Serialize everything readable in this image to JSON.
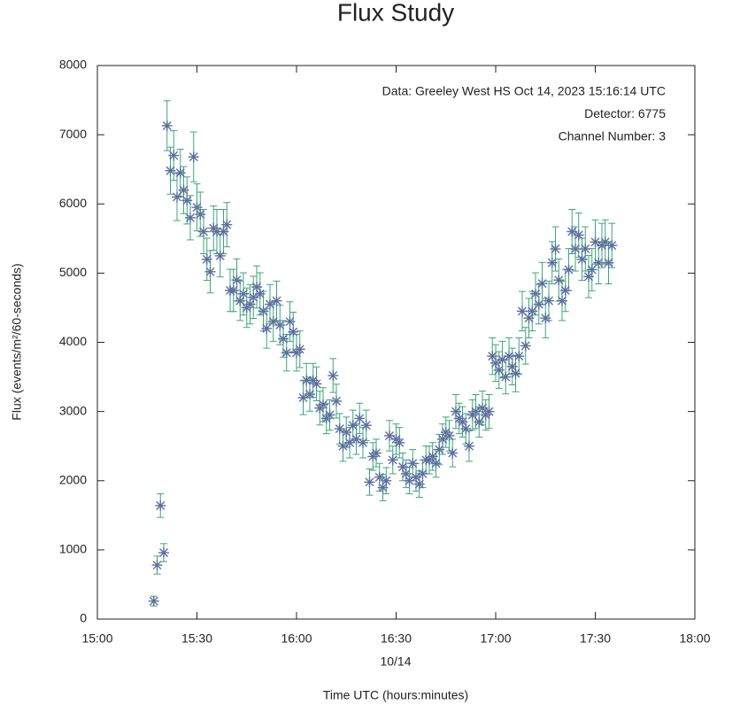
{
  "chart_data": {
    "type": "scatter",
    "title": "Flux Study",
    "x_label": "Time UTC (hours:minutes)",
    "x_date_label": "10/14",
    "y_label": "Flux (events/m²/60-seconds)",
    "annotations": [
      "Data: Greeley West HS Oct 14, 2023 15:16:14 UTC",
      "Detector: 6775",
      "Channel Number: 3"
    ],
    "marker_color": "#5b6f9c",
    "error_color": "#3da67a",
    "xlim": [
      "15:00",
      "18:00"
    ],
    "xticks": [
      "15:00",
      "15:30",
      "16:00",
      "16:30",
      "17:00",
      "17:30",
      "18:00"
    ],
    "ylim": [
      0,
      8000
    ],
    "yticks": [
      0,
      1000,
      2000,
      3000,
      4000,
      5000,
      6000,
      7000,
      8000
    ],
    "x": [
      "15:17",
      "15:18",
      "15:19",
      "15:20",
      "15:21",
      "15:22",
      "15:23",
      "15:24",
      "15:25",
      "15:26",
      "15:27",
      "15:28",
      "15:29",
      "15:30",
      "15:31",
      "15:32",
      "15:33",
      "15:34",
      "15:35",
      "15:36",
      "15:37",
      "15:38",
      "15:39",
      "15:40",
      "15:41",
      "15:42",
      "15:43",
      "15:44",
      "15:45",
      "15:46",
      "15:47",
      "15:48",
      "15:49",
      "15:50",
      "15:51",
      "15:52",
      "15:53",
      "15:54",
      "15:55",
      "15:56",
      "15:57",
      "15:58",
      "15:59",
      "16:00",
      "16:01",
      "16:02",
      "16:03",
      "16:04",
      "16:05",
      "16:06",
      "16:07",
      "16:08",
      "16:09",
      "16:10",
      "16:11",
      "16:12",
      "16:13",
      "16:14",
      "16:15",
      "16:16",
      "16:17",
      "16:18",
      "16:19",
      "16:20",
      "16:21",
      "16:22",
      "16:23",
      "16:24",
      "16:25",
      "16:26",
      "16:27",
      "16:28",
      "16:29",
      "16:30",
      "16:31",
      "16:32",
      "16:33",
      "16:34",
      "16:35",
      "16:36",
      "16:37",
      "16:38",
      "16:39",
      "16:40",
      "16:41",
      "16:42",
      "16:43",
      "16:44",
      "16:45",
      "16:46",
      "16:47",
      "16:48",
      "16:49",
      "16:50",
      "16:51",
      "16:52",
      "16:53",
      "16:54",
      "16:55",
      "16:56",
      "16:57",
      "16:58",
      "16:59",
      "17:00",
      "17:01",
      "17:02",
      "17:03",
      "17:04",
      "17:05",
      "17:06",
      "17:07",
      "17:08",
      "17:09",
      "17:10",
      "17:11",
      "17:12",
      "17:13",
      "17:14",
      "17:15",
      "17:16",
      "17:17",
      "17:18",
      "17:19",
      "17:20",
      "17:21",
      "17:22",
      "17:23",
      "17:24",
      "17:25",
      "17:26",
      "17:27",
      "17:28",
      "17:29",
      "17:30",
      "17:31",
      "17:32",
      "17:33",
      "17:34",
      "17:35"
    ],
    "values": [
      260,
      780,
      1640,
      960,
      7130,
      6480,
      6700,
      6100,
      6450,
      6200,
      6050,
      5800,
      6680,
      5950,
      5850,
      5600,
      5200,
      5020,
      5650,
      5600,
      5250,
      5600,
      5700,
      4750,
      4750,
      4900,
      4600,
      4700,
      4500,
      4550,
      4650,
      4800,
      4700,
      4450,
      4200,
      4550,
      4300,
      4600,
      4250,
      4050,
      3850,
      4300,
      4150,
      3850,
      3900,
      3200,
      3450,
      3250,
      3450,
      3400,
      3050,
      3100,
      2900,
      2950,
      3520,
      3150,
      2750,
      2500,
      2700,
      2550,
      2800,
      2600,
      2900,
      2550,
      2800,
      1980,
      2350,
      2400,
      2050,
      1900,
      2000,
      2650,
      2300,
      2600,
      2550,
      2200,
      2100,
      2000,
      2250,
      2050,
      1950,
      2100,
      2300,
      2300,
      2350,
      2250,
      2450,
      2600,
      2700,
      2650,
      2400,
      3000,
      2900,
      2850,
      2750,
      2500,
      2950,
      3000,
      2850,
      3050,
      2950,
      3000,
      3800,
      3700,
      3600,
      3750,
      3500,
      3800,
      3650,
      3550,
      3800,
      4450,
      3950,
      4350,
      4450,
      4700,
      4550,
      4850,
      4350,
      4600,
      5150,
      5350,
      4900,
      4600,
      4750,
      5050,
      5600,
      5350,
      5550,
      5200,
      5350,
      4950,
      5050,
      5450,
      5150,
      5400,
      5450,
      5150,
      5400
    ],
    "errors": [
      70,
      130,
      170,
      130,
      360,
      340,
      360,
      340,
      340,
      340,
      340,
      320,
      360,
      340,
      320,
      320,
      305,
      305,
      320,
      320,
      305,
      320,
      320,
      305,
      305,
      305,
      285,
      305,
      285,
      285,
      305,
      305,
      305,
      285,
      285,
      285,
      285,
      285,
      285,
      265,
      265,
      285,
      285,
      265,
      265,
      245,
      245,
      245,
      245,
      245,
      245,
      245,
      220,
      220,
      245,
      245,
      220,
      220,
      220,
      220,
      220,
      220,
      220,
      220,
      220,
      190,
      200,
      200,
      200,
      190,
      190,
      220,
      200,
      220,
      220,
      200,
      200,
      190,
      200,
      200,
      190,
      200,
      200,
      200,
      200,
      200,
      220,
      220,
      220,
      220,
      200,
      245,
      220,
      220,
      220,
      220,
      220,
      245,
      220,
      245,
      220,
      245,
      265,
      265,
      265,
      265,
      245,
      265,
      265,
      265,
      265,
      285,
      265,
      285,
      285,
      305,
      285,
      305,
      285,
      285,
      305,
      320,
      305,
      285,
      305,
      305,
      320,
      320,
      320,
      305,
      320,
      305,
      305,
      320,
      305,
      320,
      320,
      305,
      320
    ]
  }
}
